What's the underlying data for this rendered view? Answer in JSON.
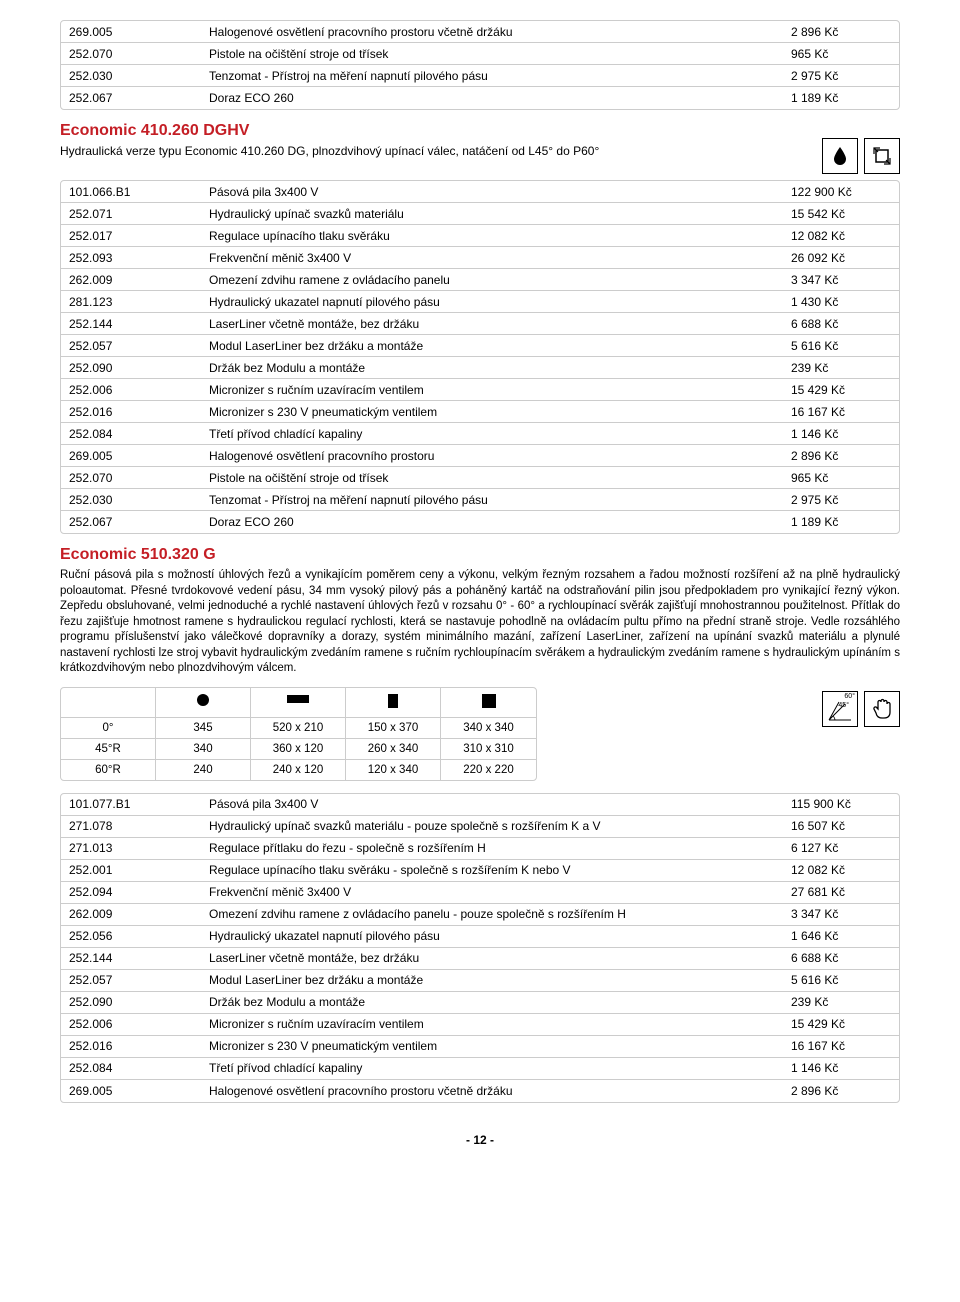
{
  "table1": {
    "rows": [
      {
        "code": "269.005",
        "desc": "Halogenové osvětlení pracovního prostoru včetně držáku",
        "price": "2 896 Kč"
      },
      {
        "code": "252.070",
        "desc": "Pistole na očištění stroje od třísek",
        "price": "965 Kč"
      },
      {
        "code": "252.030",
        "desc": "Tenzomat - Přístroj na měření napnutí pilového pásu",
        "price": "2 975 Kč"
      },
      {
        "code": "252.067",
        "desc": "Doraz ECO 260",
        "price": "1 189 Kč"
      }
    ]
  },
  "section1": {
    "title": "Economic 410.260 DGHV",
    "sub": "Hydraulická verze typu Economic 410.260 DG, plnozdvihový upínací válec, natáčení od L45° do P60°"
  },
  "table2": {
    "rows": [
      {
        "code": "101.066.B1",
        "desc": "Pásová pila 3x400 V",
        "price": "122 900 Kč"
      },
      {
        "code": "252.071",
        "desc": "Hydraulický upínač svazků materiálu",
        "price": "15 542 Kč"
      },
      {
        "code": "252.017",
        "desc": "Regulace upínacího tlaku svěráku",
        "price": "12 082 Kč"
      },
      {
        "code": "252.093",
        "desc": "Frekvenční měnič 3x400 V",
        "price": "26 092 Kč"
      },
      {
        "code": "262.009",
        "desc": "Omezení zdvihu ramene z ovládacího panelu",
        "price": "3 347 Kč"
      },
      {
        "code": "281.123",
        "desc": "Hydraulický ukazatel napnutí pilového pásu",
        "price": "1 430 Kč"
      },
      {
        "code": "252.144",
        "desc": "LaserLiner včetně montáže, bez držáku",
        "price": "6 688 Kč"
      },
      {
        "code": "252.057",
        "desc": "Modul LaserLiner bez držáku a montáže",
        "price": "5 616 Kč"
      },
      {
        "code": "252.090",
        "desc": "Držák bez Modulu a montáže",
        "price": "239 Kč"
      },
      {
        "code": "252.006",
        "desc": "Micronizer s ručním uzavíracím ventilem",
        "price": "15 429 Kč"
      },
      {
        "code": "252.016",
        "desc": "Micronizer s 230 V pneumatickým ventilem",
        "price": "16 167 Kč"
      },
      {
        "code": "252.084",
        "desc": "Třetí přívod chladící kapaliny",
        "price": "1 146 Kč"
      },
      {
        "code": "269.005",
        "desc": "Halogenové osvětlení pracovního prostoru",
        "price": "2 896 Kč"
      },
      {
        "code": "252.070",
        "desc": "Pistole na očištění stroje od třísek",
        "price": "965 Kč"
      },
      {
        "code": "252.030",
        "desc": "Tenzomat - Přístroj na měření napnutí pilového pásu",
        "price": "2 975 Kč"
      },
      {
        "code": "252.067",
        "desc": "Doraz ECO 260",
        "price": "1 189 Kč"
      }
    ]
  },
  "section2": {
    "title": "Economic 510.320 G",
    "desc": "Ruční pásová pila s možností úhlových řezů a vynikajícím poměrem ceny a výkonu, velkým řezným rozsahem a řadou možností rozšíření až na plně hydraulický poloautomat. Přesné tvrdokovové vedení pásu, 34 mm vysoký pilový pás a poháněný kartáč na odstraňování pilin jsou předpokladem pro vynikající řezný výkon. Zepředu obsluhované, velmi jednoduché a rychlé nastavení úhlových řezů v rozsahu 0° - 60° a rychloupínací svěrák zajišťují mnohostrannou použitelnost. Přítlak do řezu zajišťuje hmotnost ramene s hydraulickou regulací rychlosti, která se nastavuje pohodlně na ovládacím pultu přímo na přední straně stroje. Vedle rozsáhlého programu příslušenství jako válečkové dopravníky a dorazy, systém minimálního mazání, zařízení LaserLiner, zařízení na upínání svazků materiálu a plynulé nastavení rychlosti lze stroj vybavit hydraulickým zvedáním ramene s ručním rychloupínacím svěrákem a hydraulickým zvedáním ramene s hydraulickým upínáním s krátkozdvihovým nebo plnozdvihovým válcem."
  },
  "capacity": {
    "rows": [
      {
        "angle": "0°",
        "c1": "345",
        "c2": "520 x 210",
        "c3": "150 x 370",
        "c4": "340 x 340"
      },
      {
        "angle": "45°R",
        "c1": "340",
        "c2": "360 x 120",
        "c3": "260 x 340",
        "c4": "310 x 310"
      },
      {
        "angle": "60°R",
        "c1": "240",
        "c2": "240 x 120",
        "c3": "120 x 340",
        "c4": "220 x 220"
      }
    ]
  },
  "table3": {
    "rows": [
      {
        "code": "101.077.B1",
        "desc": "Pásová pila 3x400 V",
        "price": "115 900 Kč"
      },
      {
        "code": "271.078",
        "desc": "Hydraulický upínač svazků materiálu - pouze společně s rozšířením K a V",
        "price": "16 507 Kč"
      },
      {
        "code": "271.013",
        "desc": "Regulace přítlaku do řezu - společně s rozšířením H",
        "price": "6 127 Kč"
      },
      {
        "code": "252.001",
        "desc": "Regulace upínacího tlaku svěráku - společně s rozšířením K nebo V",
        "price": "12 082 Kč"
      },
      {
        "code": "252.094",
        "desc": "Frekvenční měnič 3x400 V",
        "price": "27 681 Kč"
      },
      {
        "code": "262.009",
        "desc": "Omezení zdvihu ramene z ovládacího panelu - pouze společně s rozšířením H",
        "price": "3 347 Kč"
      },
      {
        "code": "252.056",
        "desc": "Hydraulický ukazatel napnutí pilového pásu",
        "price": "1 646 Kč"
      },
      {
        "code": "252.144",
        "desc": "LaserLiner včetně montáže, bez držáku",
        "price": "6 688 Kč"
      },
      {
        "code": "252.057",
        "desc": "Modul LaserLiner bez držáku a montáže",
        "price": "5 616 Kč"
      },
      {
        "code": "252.090",
        "desc": "Držák bez Modulu a montáže",
        "price": "239 Kč"
      },
      {
        "code": "252.006",
        "desc": "Micronizer s ručním uzavíracím ventilem",
        "price": "15 429 Kč"
      },
      {
        "code": "252.016",
        "desc": "Micronizer s 230 V pneumatickým ventilem",
        "price": "16 167 Kč"
      },
      {
        "code": "252.084",
        "desc": "Třetí přívod chladící kapaliny",
        "price": "1 146 Kč"
      },
      {
        "code": "269.005",
        "desc": "Halogenové osvětlení pracovního prostoru včetně držáku",
        "price": "2 896 Kč"
      }
    ]
  },
  "page": "- 12 -",
  "icons": {
    "angle_small": "45°",
    "angle_large": "60°"
  }
}
